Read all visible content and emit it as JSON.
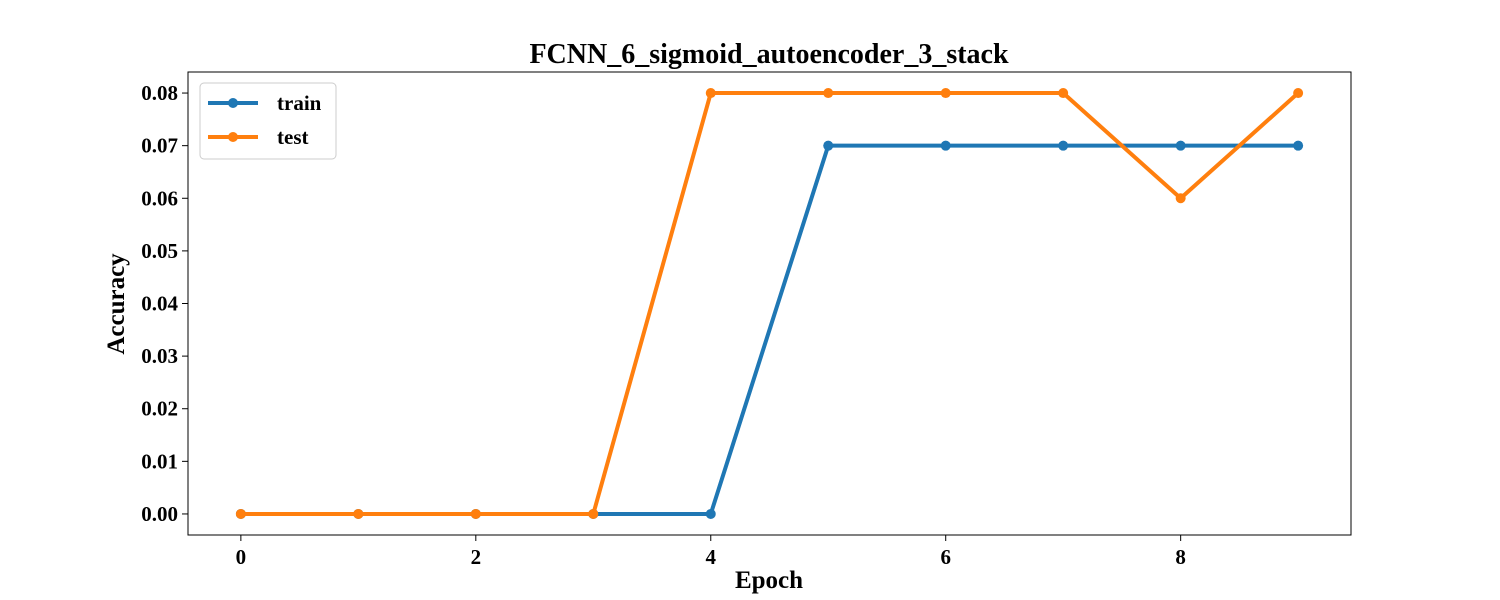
{
  "chart_data": {
    "type": "line",
    "title": "FCNN_6_sigmoid_autoencoder_3_stack",
    "xlabel": "Epoch",
    "ylabel": "Accuracy",
    "x": [
      0,
      1,
      2,
      3,
      4,
      5,
      6,
      7,
      8,
      9
    ],
    "xlim": [
      -0.45,
      9.45
    ],
    "ylim": [
      -0.004,
      0.084
    ],
    "xticks": [
      0,
      2,
      4,
      6,
      8
    ],
    "xtick_labels": [
      "0",
      "2",
      "4",
      "6",
      "8"
    ],
    "yticks": [
      0.0,
      0.01,
      0.02,
      0.03,
      0.04,
      0.05,
      0.06,
      0.07,
      0.08
    ],
    "ytick_labels": [
      "0.00",
      "0.01",
      "0.02",
      "0.03",
      "0.04",
      "0.05",
      "0.06",
      "0.07",
      "0.08"
    ],
    "grid": false,
    "legend_position": "top-left",
    "series": [
      {
        "name": "train",
        "color": "#1f77b4",
        "values": [
          0,
          0,
          0,
          0,
          0,
          0.07,
          0.07,
          0.07,
          0.07,
          0.07
        ]
      },
      {
        "name": "test",
        "color": "#ff7f0e",
        "values": [
          0,
          0,
          0,
          0,
          0.08,
          0.08,
          0.08,
          0.08,
          0.06,
          0.08
        ]
      }
    ]
  }
}
